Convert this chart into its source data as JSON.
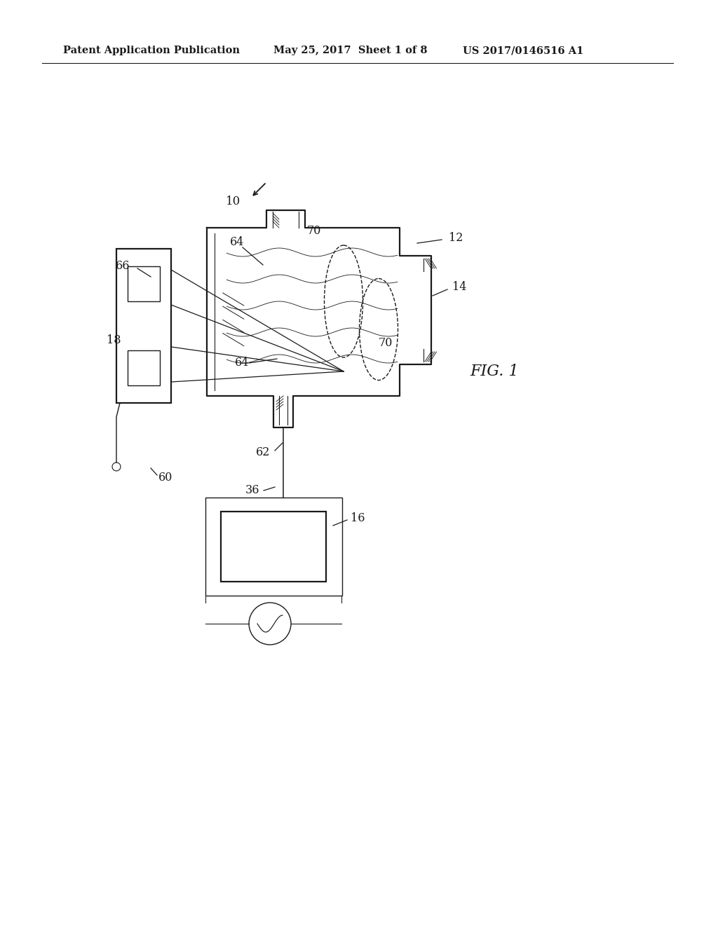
{
  "bg_color": "#ffffff",
  "line_color": "#1a1a1a",
  "header_left": "Patent Application Publication",
  "header_mid": "May 25, 2017  Sheet 1 of 8",
  "header_right": "US 2017/0146516 A1",
  "fig_label": "FIG. 1"
}
